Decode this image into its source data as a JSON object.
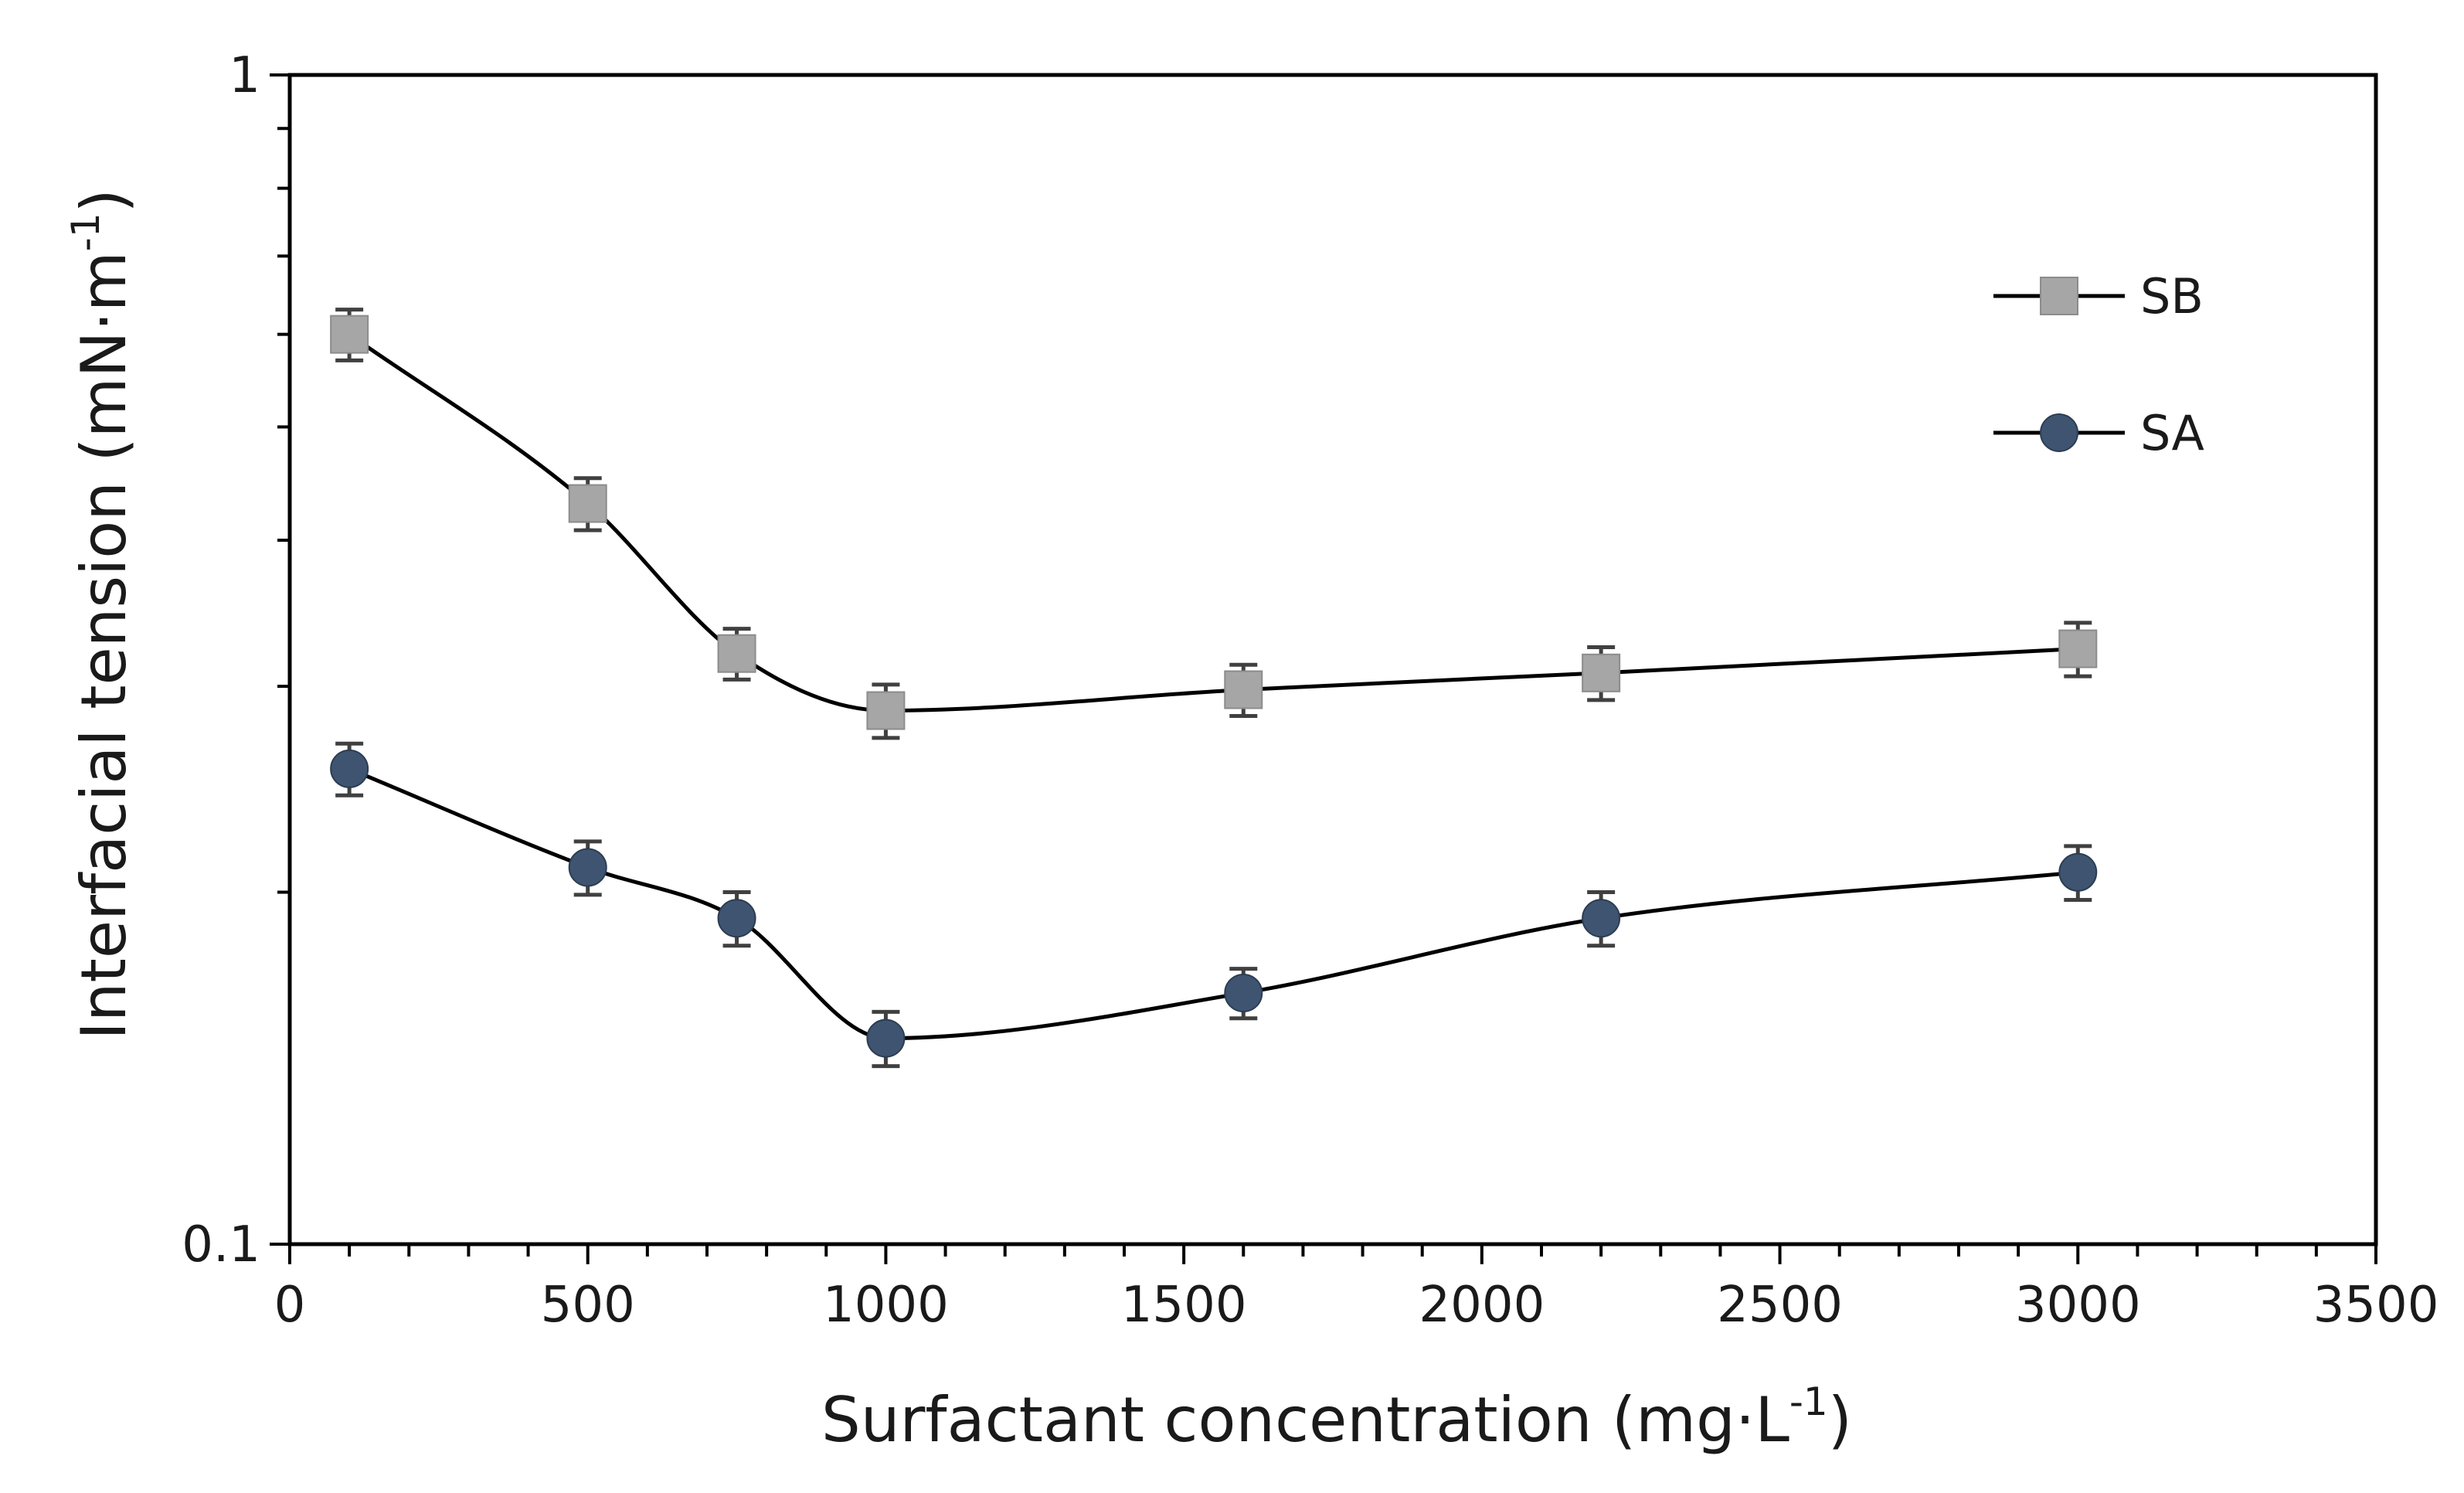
{
  "chart_data": {
    "type": "line",
    "title": "",
    "xlabel": "Surfactant concentration (mg·L",
    "xlabel_sup": "-1",
    "xlabel_close": ")",
    "ylabel": "Interfacial tension (mN·m",
    "ylabel_sup": "-1",
    "ylabel_close": ")",
    "xlim": [
      0,
      3500
    ],
    "ylim": [
      0.1,
      1
    ],
    "yscale": "log",
    "grid": false,
    "legend_position": "top-right",
    "x_ticks": [
      0,
      500,
      1000,
      1500,
      2000,
      2500,
      3000,
      3500
    ],
    "x_tick_labels": [
      "0",
      "500",
      "1000",
      "1500",
      "2000",
      "2500",
      "3000",
      "3500"
    ],
    "y_ticks": [
      0.1,
      1
    ],
    "y_tick_labels": [
      "0.1",
      "1"
    ],
    "series": [
      {
        "name": "SB",
        "marker": "square",
        "color": "#a6a6a6",
        "line_color": "#000000",
        "x": [
          100,
          500,
          750,
          1000,
          1600,
          2200,
          3000
        ],
        "values": [
          0.6,
          0.43,
          0.32,
          0.286,
          0.298,
          0.308,
          0.323
        ],
        "error": [
          0.03,
          0.022,
          0.016,
          0.015,
          0.015,
          0.016,
          0.017
        ]
      },
      {
        "name": "SA",
        "marker": "circle",
        "color": "#3e5470",
        "line_color": "#000000",
        "x": [
          100,
          500,
          750,
          1000,
          1600,
          2200,
          3000
        ],
        "values": [
          0.255,
          0.21,
          0.19,
          0.15,
          0.164,
          0.19,
          0.208
        ],
        "error": [
          0.013,
          0.011,
          0.01,
          0.008,
          0.008,
          0.01,
          0.011
        ]
      }
    ]
  }
}
